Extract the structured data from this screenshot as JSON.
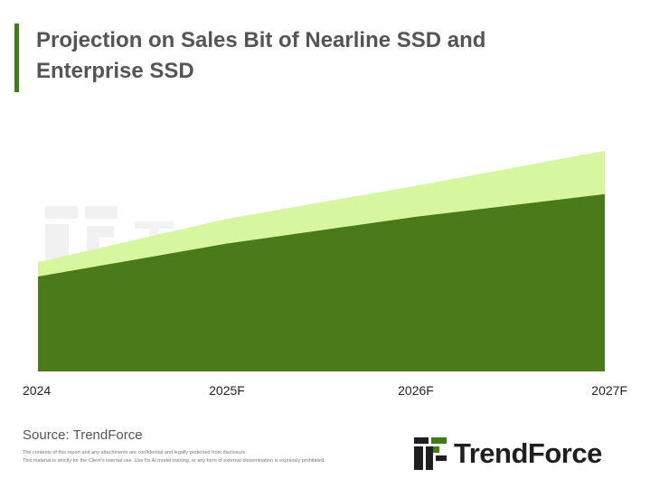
{
  "title_line1": "Projection on Sales Bit of Nearline SSD and",
  "title_line2": "Enterprise SSD",
  "watermark": "TrendForce",
  "source": "Source: TrendForce",
  "disclaimer_line1": "The contents of this report and any attachments are confidential and legally protected from disclosure.",
  "disclaimer_line2": "This material is strictly for the Client's internal use. Use for AI model training, or any form of external dissemination is expressly prohibited.",
  "logo_text": "TrendForce",
  "colors": {
    "accent": "#3f7e17",
    "series_dark": "#4b7a18",
    "series_light": "#d6f7a0",
    "title": "#555555"
  },
  "chart_data": {
    "type": "area",
    "stacked": true,
    "categories": [
      "2024",
      "2025F",
      "2026F",
      "2027F"
    ],
    "series": [
      {
        "values": [
          0.46,
          0.62,
          0.75,
          0.86
        ]
      },
      {
        "values": [
          0.07,
          0.12,
          0.15,
          0.21
        ]
      }
    ],
    "ylim": [
      0,
      1.1
    ],
    "grid": false,
    "legend": "none",
    "y_axis_labels": false
  }
}
